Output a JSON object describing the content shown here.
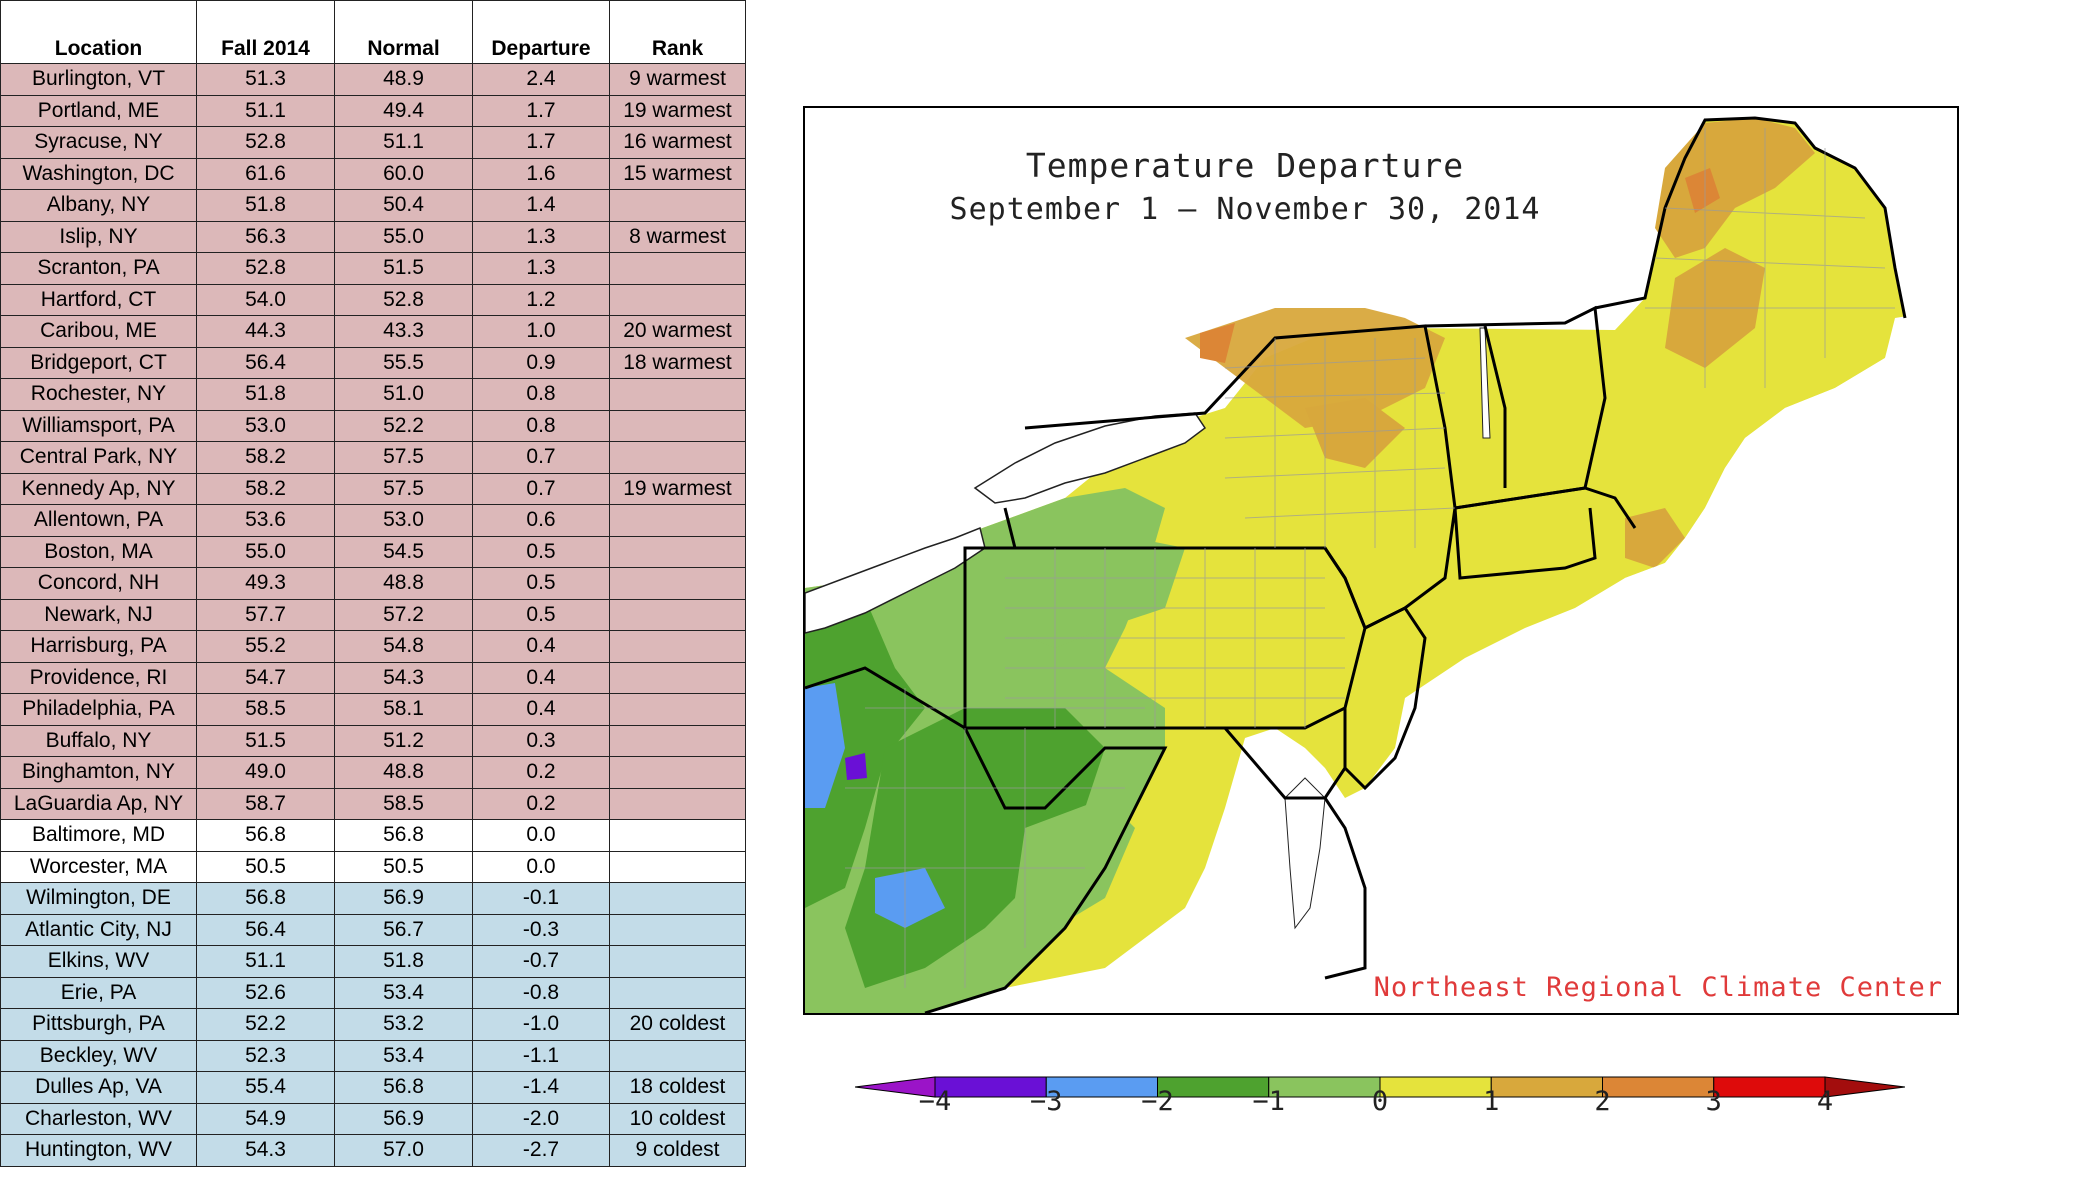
{
  "table": {
    "headers": [
      "Location",
      "Fall 2014",
      "Normal",
      "Departure",
      "Rank"
    ],
    "rows": [
      {
        "location": "Burlington, VT",
        "fall": "51.3",
        "normal": "48.9",
        "departure": "2.4",
        "rank": "9 warmest",
        "tone": "warm"
      },
      {
        "location": "Portland, ME",
        "fall": "51.1",
        "normal": "49.4",
        "departure": "1.7",
        "rank": "19 warmest",
        "tone": "warm"
      },
      {
        "location": "Syracuse, NY",
        "fall": "52.8",
        "normal": "51.1",
        "departure": "1.7",
        "rank": "16 warmest",
        "tone": "warm"
      },
      {
        "location": "Washington, DC",
        "fall": "61.6",
        "normal": "60.0",
        "departure": "1.6",
        "rank": "15 warmest",
        "tone": "warm"
      },
      {
        "location": "Albany, NY",
        "fall": "51.8",
        "normal": "50.4",
        "departure": "1.4",
        "rank": "",
        "tone": "warm"
      },
      {
        "location": "Islip, NY",
        "fall": "56.3",
        "normal": "55.0",
        "departure": "1.3",
        "rank": "8 warmest",
        "tone": "warm"
      },
      {
        "location": "Scranton, PA",
        "fall": "52.8",
        "normal": "51.5",
        "departure": "1.3",
        "rank": "",
        "tone": "warm"
      },
      {
        "location": "Hartford, CT",
        "fall": "54.0",
        "normal": "52.8",
        "departure": "1.2",
        "rank": "",
        "tone": "warm"
      },
      {
        "location": "Caribou, ME",
        "fall": "44.3",
        "normal": "43.3",
        "departure": "1.0",
        "rank": "20 warmest",
        "tone": "warm"
      },
      {
        "location": "Bridgeport, CT",
        "fall": "56.4",
        "normal": "55.5",
        "departure": "0.9",
        "rank": "18 warmest",
        "tone": "warm"
      },
      {
        "location": "Rochester, NY",
        "fall": "51.8",
        "normal": "51.0",
        "departure": "0.8",
        "rank": "",
        "tone": "warm"
      },
      {
        "location": "Williamsport, PA",
        "fall": "53.0",
        "normal": "52.2",
        "departure": "0.8",
        "rank": "",
        "tone": "warm"
      },
      {
        "location": "Central Park, NY",
        "fall": "58.2",
        "normal": "57.5",
        "departure": "0.7",
        "rank": "",
        "tone": "warm"
      },
      {
        "location": "Kennedy Ap, NY",
        "fall": "58.2",
        "normal": "57.5",
        "departure": "0.7",
        "rank": "19 warmest",
        "tone": "warm"
      },
      {
        "location": "Allentown, PA",
        "fall": "53.6",
        "normal": "53.0",
        "departure": "0.6",
        "rank": "",
        "tone": "warm"
      },
      {
        "location": "Boston, MA",
        "fall": "55.0",
        "normal": "54.5",
        "departure": "0.5",
        "rank": "",
        "tone": "warm"
      },
      {
        "location": "Concord, NH",
        "fall": "49.3",
        "normal": "48.8",
        "departure": "0.5",
        "rank": "",
        "tone": "warm"
      },
      {
        "location": "Newark, NJ",
        "fall": "57.7",
        "normal": "57.2",
        "departure": "0.5",
        "rank": "",
        "tone": "warm"
      },
      {
        "location": "Harrisburg, PA",
        "fall": "55.2",
        "normal": "54.8",
        "departure": "0.4",
        "rank": "",
        "tone": "warm"
      },
      {
        "location": "Providence, RI",
        "fall": "54.7",
        "normal": "54.3",
        "departure": "0.4",
        "rank": "",
        "tone": "warm"
      },
      {
        "location": "Philadelphia, PA",
        "fall": "58.5",
        "normal": "58.1",
        "departure": "0.4",
        "rank": "",
        "tone": "warm"
      },
      {
        "location": "Buffalo, NY",
        "fall": "51.5",
        "normal": "51.2",
        "departure": "0.3",
        "rank": "",
        "tone": "warm"
      },
      {
        "location": "Binghamton, NY",
        "fall": "49.0",
        "normal": "48.8",
        "departure": "0.2",
        "rank": "",
        "tone": "warm"
      },
      {
        "location": "LaGuardia Ap, NY",
        "fall": "58.7",
        "normal": "58.5",
        "departure": "0.2",
        "rank": "",
        "tone": "warm"
      },
      {
        "location": "Baltimore, MD",
        "fall": "56.8",
        "normal": "56.8",
        "departure": "0.0",
        "rank": "",
        "tone": "neutral"
      },
      {
        "location": "Worcester, MA",
        "fall": "50.5",
        "normal": "50.5",
        "departure": "0.0",
        "rank": "",
        "tone": "neutral"
      },
      {
        "location": "Wilmington, DE",
        "fall": "56.8",
        "normal": "56.9",
        "departure": "-0.1",
        "rank": "",
        "tone": "cool"
      },
      {
        "location": "Atlantic City, NJ",
        "fall": "56.4",
        "normal": "56.7",
        "departure": "-0.3",
        "rank": "",
        "tone": "cool"
      },
      {
        "location": "Elkins, WV",
        "fall": "51.1",
        "normal": "51.8",
        "departure": "-0.7",
        "rank": "",
        "tone": "cool"
      },
      {
        "location": "Erie, PA",
        "fall": "52.6",
        "normal": "53.4",
        "departure": "-0.8",
        "rank": "",
        "tone": "cool"
      },
      {
        "location": "Pittsburgh, PA",
        "fall": "52.2",
        "normal": "53.2",
        "departure": "-1.0",
        "rank": "20 coldest",
        "tone": "cool"
      },
      {
        "location": "Beckley, WV",
        "fall": "52.3",
        "normal": "53.4",
        "departure": "-1.1",
        "rank": "",
        "tone": "cool"
      },
      {
        "location": "Dulles Ap, VA",
        "fall": "55.4",
        "normal": "56.8",
        "departure": "-1.4",
        "rank": "18 coldest",
        "tone": "cool"
      },
      {
        "location": "Charleston, WV",
        "fall": "54.9",
        "normal": "56.9",
        "departure": "-2.0",
        "rank": "10 coldest",
        "tone": "cool"
      },
      {
        "location": "Huntington, WV",
        "fall": "54.3",
        "normal": "57.0",
        "departure": "-2.7",
        "rank": "9 coldest",
        "tone": "cool"
      }
    ],
    "tone_colors": {
      "warm": "#dcb8b9",
      "neutral": "#ffffff",
      "cool": "#c3dce8"
    }
  },
  "map": {
    "title": "Temperature Departure",
    "subtitle": "September 1 — November 30, 2014",
    "credit": "Northeast Regional Climate Center",
    "credit_color": "#e03a3a"
  },
  "colorbar": {
    "ticks": [
      "−4",
      "−3",
      "−2",
      "−1",
      "0",
      "1",
      "2",
      "3",
      "4"
    ],
    "bins": [
      {
        "from": -5,
        "to": -4,
        "color": "#9b14c8"
      },
      {
        "from": -4,
        "to": -3,
        "color": "#6a10d6"
      },
      {
        "from": -3,
        "to": -2,
        "color": "#5a9cf2"
      },
      {
        "from": -2,
        "to": -1,
        "color": "#4ea22f"
      },
      {
        "from": -1,
        "to": 0,
        "color": "#8ac45e"
      },
      {
        "from": 0,
        "to": 1,
        "color": "#e5e33c"
      },
      {
        "from": 1,
        "to": 2,
        "color": "#d8a83c"
      },
      {
        "from": 2,
        "to": 3,
        "color": "#dc8636"
      },
      {
        "from": 3,
        "to": 4,
        "color": "#de0b0b"
      },
      {
        "from": 4,
        "to": 5,
        "color": "#a30d0d"
      }
    ]
  }
}
